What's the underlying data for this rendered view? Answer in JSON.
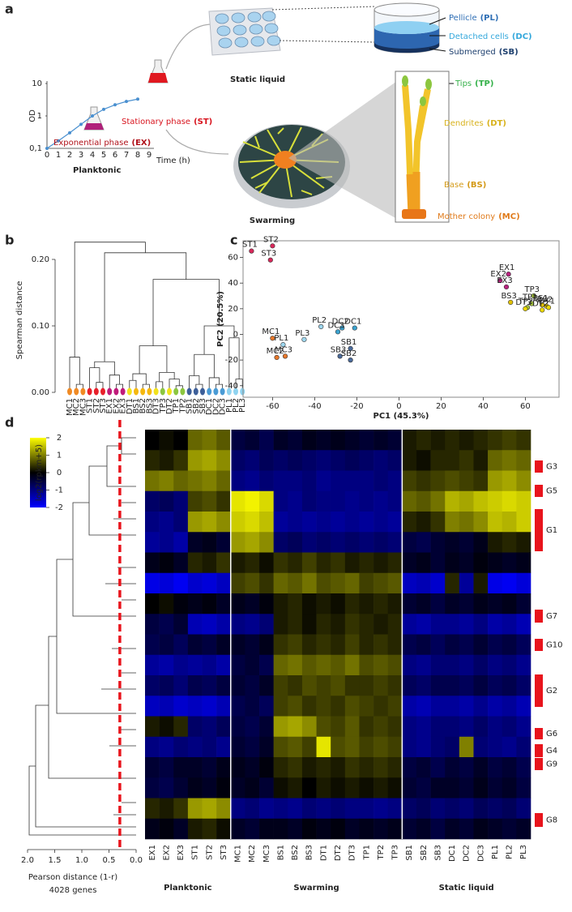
{
  "panel_labels": [
    "a",
    "b",
    "c",
    "d"
  ],
  "panel_a": {
    "growth": {
      "ylabel": "OD",
      "xlabel": "Time (h)",
      "xticks": [
        0,
        1,
        2,
        3,
        4,
        5,
        6,
        7,
        8,
        9
      ],
      "ylim": [
        0.1,
        10
      ],
      "log_y": true,
      "yticks": [
        {
          "value": 0.1,
          "label": "0,1"
        },
        1,
        10
      ],
      "x": [
        0,
        1,
        2,
        3,
        4,
        5,
        6,
        7,
        8
      ],
      "y": [
        0.1,
        0.17,
        0.3,
        0.55,
        1,
        1.6,
        2.2,
        2.8,
        3.3
      ],
      "color": "#4a90d0"
    },
    "phases": [
      {
        "text": "Stationary phase",
        "abbr": "(ST)",
        "color": "#d8141e"
      },
      {
        "text": "Exponential phase",
        "abbr": "(EX)",
        "color": "#b0121a"
      }
    ],
    "conditions": [
      "Planktonic",
      "Static liquid",
      "Swarming"
    ],
    "static_layers": [
      {
        "text": "Pellicle",
        "abbr": "(PL)",
        "color": "#2f6fb5"
      },
      {
        "text": "Detached cells",
        "abbr": "(DC)",
        "color": "#34a8dc"
      },
      {
        "text": "Submerged",
        "abbr": "(SB)",
        "color": "#1d3f6e"
      }
    ],
    "swarm_parts": [
      {
        "text": "Tips",
        "abbr": "(TP)",
        "color": "#35b14a"
      },
      {
        "text": "Dendrites",
        "abbr": "(DT)",
        "color": "#d8b21c"
      },
      {
        "text": "Base",
        "abbr": "(BS)",
        "color": "#d49a18"
      },
      {
        "text": "Mother colony",
        "abbr": "(MC)",
        "color": "#e07a1a"
      }
    ]
  },
  "panel_b": {
    "ylabel": "Spearman distance",
    "ylim": [
      0,
      0.25
    ],
    "yticks": [
      {
        "value": 0,
        "label": "0.00"
      },
      {
        "value": 0.1,
        "label": "0.10"
      },
      {
        "value": 0.2,
        "label": "0.20"
      }
    ],
    "leaves": [
      {
        "name": "MC1",
        "color": "#f08a24"
      },
      {
        "name": "MC2",
        "color": "#f08a24"
      },
      {
        "name": "MC3",
        "color": "#f08a24"
      },
      {
        "name": "ST1",
        "color": "#e8202a"
      },
      {
        "name": "ST2",
        "color": "#e8202a"
      },
      {
        "name": "ST3",
        "color": "#e8202a"
      },
      {
        "name": "EX1",
        "color": "#c01b7a"
      },
      {
        "name": "EX2",
        "color": "#c01b7a"
      },
      {
        "name": "EX3",
        "color": "#c01b7a"
      },
      {
        "name": "DT1",
        "color": "#f2e21c"
      },
      {
        "name": "BS1",
        "color": "#f5b80f"
      },
      {
        "name": "BS2",
        "color": "#f5b80f"
      },
      {
        "name": "BS3",
        "color": "#f5b80f"
      },
      {
        "name": "DT3",
        "color": "#f2e21c"
      },
      {
        "name": "TP3",
        "color": "#8cc63f"
      },
      {
        "name": "DT2",
        "color": "#f2e21c"
      },
      {
        "name": "TP1",
        "color": "#8cc63f"
      },
      {
        "name": "TP2",
        "color": "#8cc63f"
      },
      {
        "name": "SB1",
        "color": "#3d5f99"
      },
      {
        "name": "SB2",
        "color": "#3d5f99"
      },
      {
        "name": "SB3",
        "color": "#3d5f99"
      },
      {
        "name": "DC1",
        "color": "#4a9bd5"
      },
      {
        "name": "DC2",
        "color": "#4a9bd5"
      },
      {
        "name": "DC3",
        "color": "#4a9bd5"
      },
      {
        "name": "PL1",
        "color": "#8fd3f0"
      },
      {
        "name": "PL2",
        "color": "#8fd3f0"
      },
      {
        "name": "PL3",
        "color": "#8fd3f0"
      }
    ],
    "merges": [
      [
        1,
        2,
        0.012
      ],
      [
        0,
        27,
        0.053
      ],
      [
        4,
        5,
        0.015
      ],
      [
        3,
        29,
        0.037
      ],
      [
        7,
        8,
        0.012
      ],
      [
        6,
        31,
        0.026
      ],
      [
        30,
        32,
        0.046
      ],
      [
        9,
        10,
        0.018
      ],
      [
        11,
        12,
        0.012
      ],
      [
        34,
        35,
        0.028
      ],
      [
        13,
        14,
        0.016
      ],
      [
        16,
        17,
        0.01
      ],
      [
        15,
        38,
        0.02
      ],
      [
        37,
        39,
        0.03
      ],
      [
        36,
        40,
        0.07
      ],
      [
        19,
        20,
        0.012
      ],
      [
        18,
        42,
        0.025
      ],
      [
        22,
        23,
        0.012
      ],
      [
        21,
        44,
        0.022
      ],
      [
        43,
        45,
        0.057
      ],
      [
        25,
        26,
        0.02
      ],
      [
        24,
        47,
        0.082
      ],
      [
        46,
        48,
        0.1
      ],
      [
        41,
        49,
        0.17
      ],
      [
        33,
        50,
        0.21
      ],
      [
        28,
        51,
        0.226
      ]
    ]
  },
  "panel_c": {
    "xlabel": "PC1 (45.3%)",
    "ylabel": "PC2 (20.5%)",
    "xlim": [
      -74,
      76
    ],
    "ylim": [
      -49,
      73
    ],
    "xticks": [
      -60,
      -40,
      -20,
      0,
      20,
      40,
      60
    ],
    "yticks": [
      -40,
      -20,
      0,
      20,
      40,
      60
    ],
    "points": [
      {
        "label": "ST1",
        "x": -70,
        "y": 65,
        "color": "#d8285a"
      },
      {
        "label": "ST2",
        "x": -60,
        "y": 69,
        "color": "#d8285a"
      },
      {
        "label": "ST3",
        "x": -61,
        "y": 58,
        "color": "#d8285a"
      },
      {
        "label": "EX1",
        "x": 52,
        "y": 47,
        "color": "#b8227e"
      },
      {
        "label": "EX2",
        "x": 48,
        "y": 42,
        "color": "#b8227e"
      },
      {
        "label": "EX3",
        "x": 51,
        "y": 37,
        "color": "#b8227e"
      },
      {
        "label": "BS3",
        "x": 53,
        "y": 25,
        "color": "#e2c200"
      },
      {
        "label": "TP3",
        "x": 64,
        "y": 30,
        "color": "#a8c83a"
      },
      {
        "label": "TP1",
        "x": 63,
        "y": 24,
        "color": "#a8c83a"
      },
      {
        "label": "TP2",
        "x": 61,
        "y": 21,
        "color": "#a8c83a"
      },
      {
        "label": "BS1",
        "x": 68,
        "y": 23,
        "color": "#e2c200"
      },
      {
        "label": "BS2",
        "x": 70,
        "y": 22,
        "color": "#e2c200"
      },
      {
        "label": "DT1",
        "x": 71,
        "y": 21,
        "color": "#ecd800"
      },
      {
        "label": "DT3",
        "x": 60,
        "y": 20,
        "color": "#ecd800"
      },
      {
        "label": "DT2",
        "x": 68,
        "y": 19,
        "color": "#ecd800"
      },
      {
        "label": "MC1",
        "x": -60,
        "y": -3,
        "color": "#e8782a"
      },
      {
        "label": "MC2",
        "x": -58,
        "y": -18,
        "color": "#e8782a"
      },
      {
        "label": "MC3",
        "x": -54,
        "y": -17,
        "color": "#e8782a"
      },
      {
        "label": "PL1",
        "x": -55,
        "y": -8,
        "color": "#9dd6ee"
      },
      {
        "label": "PL3",
        "x": -45,
        "y": -4,
        "color": "#9dd6ee"
      },
      {
        "label": "PL2",
        "x": -37,
        "y": 6,
        "color": "#9dd6ee"
      },
      {
        "label": "DC2",
        "x": -27,
        "y": 5,
        "color": "#3ba3d0"
      },
      {
        "label": "DC1",
        "x": -21,
        "y": 5,
        "color": "#3ba3d0"
      },
      {
        "label": "DC3",
        "x": -29,
        "y": 2,
        "color": "#3ba3d0"
      },
      {
        "label": "SB1",
        "x": -23,
        "y": -11,
        "color": "#4a6a9a"
      },
      {
        "label": "SB3",
        "x": -28,
        "y": -17,
        "color": "#4a6a9a"
      },
      {
        "label": "SB2",
        "x": -23,
        "y": -20,
        "color": "#4a6a9a"
      }
    ]
  },
  "panel_d": {
    "colorbar": {
      "label": "log2(rpkm+5)",
      "lim": [
        -2,
        2
      ],
      "ticks": [
        2,
        1,
        0,
        -1,
        -2
      ],
      "colors": [
        "#0000ff",
        "#000000",
        "#ffff00"
      ]
    },
    "gene_tree": {
      "xlabel": "Pearson distance (1-r)",
      "genes": "4028 genes",
      "xlim": [
        2,
        0
      ],
      "cutoff": 0.3,
      "cutoff_color": "#e8141c",
      "xticks": [
        {
          "value": 2,
          "label": "2.0"
        },
        {
          "value": 1.5,
          "label": "1.5"
        },
        {
          "value": 1,
          "label": "1.0"
        },
        {
          "value": 0.5,
          "label": "0.5"
        },
        {
          "value": 0,
          "label": "0.0"
        }
      ]
    },
    "column_groups": [
      {
        "name": "Planktonic",
        "columns": [
          "EX1",
          "EX2",
          "EX3",
          "ST1",
          "ST2",
          "ST3"
        ]
      },
      {
        "name": "Swarming",
        "columns": [
          "MC1",
          "MC2",
          "MC3",
          "BS1",
          "BS2",
          "BS3",
          "DT1",
          "DT2",
          "DT3",
          "TP1",
          "TP2",
          "TP3"
        ]
      },
      {
        "name": "Static liquid",
        "columns": [
          "SB1",
          "SB2",
          "SB3",
          "DC1",
          "DC2",
          "DC3",
          "PL1",
          "PL2",
          "PL3"
        ]
      }
    ],
    "clusters": [
      "G3",
      "G5",
      "G1",
      "G7",
      "G10",
      "G2",
      "G6",
      "G4",
      "G9",
      "G8"
    ],
    "values": [
      [
        0,
        0.1,
        0,
        0.8,
        0.9,
        0.7,
        -0.5,
        -0.4,
        -0.6,
        -0.3,
        -0.4,
        -0.2,
        -0.3,
        -0.2,
        -0.3,
        -0.4,
        -0.3,
        -0.4,
        0.2,
        0.3,
        0.2,
        0.3,
        0.2,
        0.3,
        0.4,
        0.5,
        0.4
      ],
      [
        0.3,
        0.2,
        0.4,
        1.2,
        1.3,
        1.1,
        -0.8,
        -0.9,
        -0.7,
        -0.8,
        -0.7,
        -0.8,
        -0.9,
        -0.8,
        -0.7,
        -0.8,
        -0.9,
        -0.8,
        0.2,
        0.1,
        0.3,
        0.3,
        0.4,
        0.2,
        0.8,
        0.9,
        0.8
      ],
      [
        0.9,
        1,
        0.8,
        0.9,
        1,
        0.8,
        -1,
        -1.1,
        -0.9,
        -1,
        -1,
        -0.9,
        -1.1,
        -1,
        -1,
        -1,
        -0.9,
        -1,
        0.5,
        0.4,
        0.5,
        0.6,
        0.5,
        0.4,
        1.2,
        1.3,
        1.1
      ],
      [
        -0.8,
        -0.7,
        -0.9,
        0.5,
        0.6,
        0.4,
        1.8,
        1.9,
        1.7,
        -1,
        -1.1,
        -0.9,
        -1,
        -1,
        -1.1,
        -1,
        -1.1,
        -1,
        0.8,
        0.7,
        0.9,
        1.4,
        1.3,
        1.5,
        1.6,
        1.7,
        1.6
      ],
      [
        -1,
        -1.1,
        -0.9,
        1.2,
        1.3,
        1.1,
        1.6,
        1.7,
        1.5,
        -1.2,
        -1.1,
        -1.2,
        -1.1,
        -1.2,
        -1.1,
        -1.2,
        -1.1,
        -1.2,
        0.3,
        0.2,
        0.4,
        1,
        0.9,
        1.1,
        1.5,
        1.4,
        1.6
      ],
      [
        -1.2,
        -1.1,
        -1.3,
        -0.3,
        -0.2,
        -0.4,
        1.2,
        1.3,
        1.1,
        -0.8,
        -0.7,
        -0.9,
        -0.8,
        -0.9,
        -0.8,
        -0.9,
        -0.8,
        -0.9,
        -0.5,
        -0.6,
        -0.4,
        -0.3,
        -0.4,
        -0.2,
        0.2,
        0.3,
        0.2
      ],
      [
        -0.2,
        -0.1,
        -0.3,
        0.3,
        0.2,
        0.4,
        0.2,
        0.3,
        0.1,
        0.4,
        0.3,
        0.5,
        0.3,
        0.4,
        0.2,
        0.3,
        0.2,
        0.3,
        -0.3,
        -0.2,
        -0.4,
        -0.2,
        -0.3,
        -0.1,
        -0.2,
        -0.3,
        -0.2
      ],
      [
        -1.8,
        -1.7,
        -1.9,
        -1.6,
        -1.7,
        -1.5,
        0.5,
        0.6,
        0.4,
        0.8,
        0.7,
        0.9,
        0.6,
        0.7,
        0.8,
        0.5,
        0.6,
        0.7,
        -1.5,
        -1.4,
        -1.6,
        0.3,
        -1.2,
        0.2,
        -1.8,
        -1.9,
        -1.7
      ],
      [
        0,
        0.1,
        -0.1,
        -0.2,
        -0.1,
        -0.3,
        -0.2,
        -0.3,
        -0.1,
        0.2,
        0.3,
        0.1,
        0.2,
        0.1,
        0.3,
        0.2,
        0.3,
        0.2,
        -0.4,
        -0.3,
        -0.5,
        -0.3,
        -0.4,
        -0.2,
        -0.3,
        -0.2,
        -0.4
      ],
      [
        -0.5,
        -0.6,
        -0.4,
        -1.4,
        -1.5,
        -1.3,
        -1,
        -1.1,
        -0.9,
        0.2,
        0.3,
        0.1,
        0.3,
        0.2,
        0.4,
        0.3,
        0.2,
        0.3,
        -1.2,
        -1.3,
        -1.1,
        -1.1,
        -1.2,
        -1,
        -1.3,
        -1.2,
        -1.4
      ],
      [
        -0.6,
        -0.5,
        -0.7,
        -0.4,
        -0.5,
        -0.3,
        -0.3,
        -0.4,
        -0.2,
        0.4,
        0.5,
        0.3,
        0.4,
        0.3,
        0.5,
        0.3,
        0.4,
        0.3,
        -0.6,
        -0.5,
        -0.7,
        -0.5,
        -0.6,
        -0.4,
        -0.6,
        -0.5,
        -0.7
      ],
      [
        -1.2,
        -1.3,
        -1.1,
        -1.2,
        -1.1,
        -1.3,
        -0.5,
        -0.4,
        -0.6,
        0.8,
        0.9,
        0.7,
        0.8,
        0.7,
        0.9,
        0.6,
        0.7,
        0.6,
        -1,
        -1.1,
        -0.9,
        -0.9,
        -1,
        -0.8,
        -1,
        -0.9,
        -1.1
      ],
      [
        -0.8,
        -0.7,
        -0.9,
        -0.6,
        -0.7,
        -0.5,
        -0.4,
        -0.5,
        -0.3,
        0.5,
        0.4,
        0.6,
        0.5,
        0.6,
        0.4,
        0.4,
        0.5,
        0.4,
        -0.7,
        -0.8,
        -0.6,
        -0.6,
        -0.7,
        -0.5,
        -0.7,
        -0.6,
        -0.8
      ],
      [
        -1.5,
        -1.4,
        -1.6,
        -1.5,
        -1.6,
        -1.4,
        -0.6,
        -0.5,
        -0.7,
        0.5,
        0.6,
        0.4,
        0.5,
        0.4,
        0.6,
        0.5,
        0.4,
        0.5,
        -1.3,
        -1.4,
        -1.2,
        -1.2,
        -1.3,
        -1.1,
        -1.3,
        -1.2,
        -1.4
      ],
      [
        0.2,
        0.1,
        0.3,
        -0.8,
        -0.9,
        -0.7,
        -0.5,
        -0.6,
        -0.4,
        1.2,
        1.3,
        1.1,
        0.6,
        0.5,
        0.7,
        0.4,
        0.5,
        0.4,
        -1,
        -1.1,
        -0.9,
        -0.9,
        -1,
        -0.8,
        -1,
        -0.9,
        -1.1
      ],
      [
        -1,
        -1.1,
        -0.9,
        -1,
        -0.9,
        -1.1,
        -0.4,
        -0.5,
        -0.3,
        0.6,
        0.7,
        0.5,
        1.8,
        0.6,
        0.7,
        0.5,
        0.6,
        0.5,
        -1,
        -1.1,
        -0.9,
        -0.8,
        1,
        -0.9,
        -1,
        -1.1,
        -0.9
      ],
      [
        -0.4,
        -0.5,
        -0.3,
        -0.3,
        -0.4,
        -0.2,
        -0.2,
        -0.3,
        -0.1,
        0.3,
        0.4,
        0.2,
        0.3,
        0.2,
        0.4,
        0.3,
        0.4,
        0.3,
        -0.5,
        -0.4,
        -0.6,
        -0.4,
        -0.5,
        -0.3,
        -0.5,
        -0.4,
        -0.6
      ],
      [
        -0.5,
        -0.6,
        -0.4,
        -0.2,
        -0.3,
        -0.1,
        -0.3,
        -0.2,
        -0.4,
        0.1,
        0.2,
        0,
        0.2,
        0.1,
        0.2,
        0.1,
        0.2,
        0.1,
        -0.4,
        -0.5,
        -0.3,
        -0.3,
        -0.4,
        -0.2,
        -0.4,
        -0.3,
        -0.5
      ],
      [
        0.3,
        0.2,
        0.4,
        1.2,
        1.3,
        1.1,
        -1,
        -0.9,
        -1.1,
        -1,
        -1.1,
        -0.9,
        -1,
        -0.9,
        -1,
        -1,
        -1.1,
        -1,
        -0.8,
        -0.7,
        -0.9,
        -0.8,
        -0.9,
        -0.7,
        -0.8,
        -0.7,
        -0.9
      ],
      [
        -0.2,
        -0.1,
        -0.3,
        0.2,
        0.3,
        0.1,
        -0.3,
        -0.4,
        -0.2,
        -0.2,
        -0.3,
        -0.1,
        -0.2,
        -0.1,
        -0.3,
        -0.2,
        -0.3,
        -0.2,
        -0.4,
        -0.3,
        -0.5,
        -0.3,
        -0.4,
        -0.2,
        -0.3,
        -0.4,
        -0.3
      ]
    ]
  }
}
